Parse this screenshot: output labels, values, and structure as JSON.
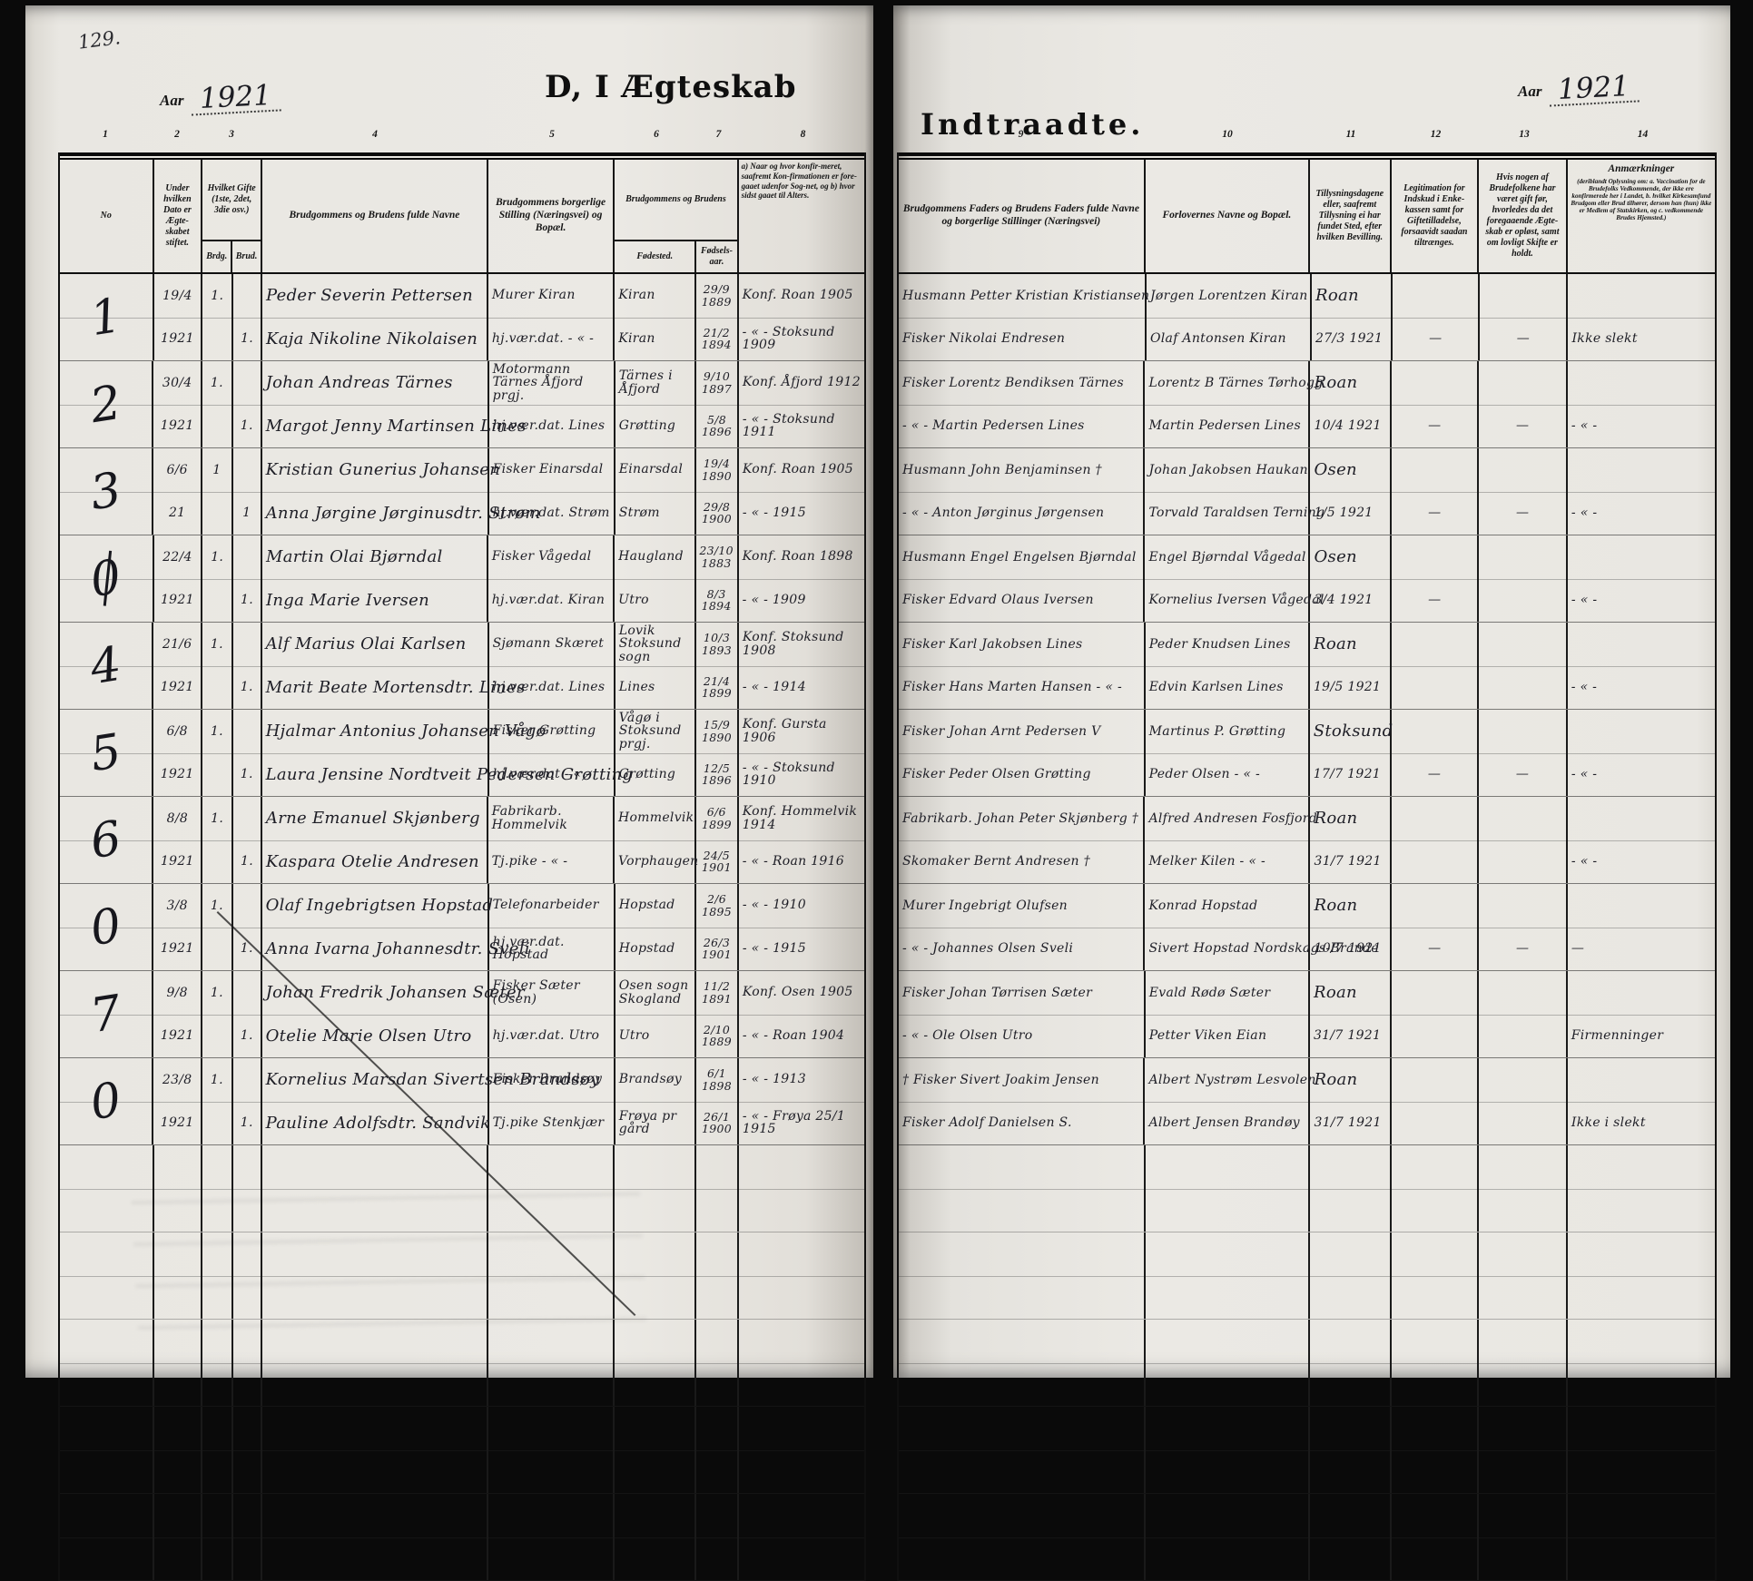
{
  "scan": {
    "page_number": "129."
  },
  "left_page": {
    "year_label": "Aar",
    "year": "1921",
    "title": "D, I Ægteskab",
    "column_numbers": [
      "1",
      "2",
      "3",
      "4",
      "5",
      "6",
      "7",
      "8"
    ],
    "headers": {
      "no": "No",
      "date": "Under hvilken Dato er Ægte-skabet stiftet.",
      "gifte": "Hvilket Gifte (1ste, 2det, 3die osv.)",
      "gifte_brdg": "Brdg.",
      "gifte_brud": "Brud.",
      "names": "Brudgommens og Brudens fulde Navne",
      "stilling": "Brudgommens borgerlige Stilling (Næringsvei) og Bopæl.",
      "couple": "Brudgommens og Brudens",
      "fodested": "Fødested.",
      "fodselsaar": "Fødsels-aar.",
      "konf": "a) Naar og hvor konfir-meret, saafremt Kon-firmationen er fore-gaaet udenfor Sog-net, og b) hvor sidst gaaet til Alters."
    }
  },
  "right_page": {
    "title": "Indtraadte.",
    "year_label": "Aar",
    "year": "1921",
    "column_numbers": [
      "9",
      "10",
      "11",
      "12",
      "13",
      "14"
    ],
    "headers": {
      "fathers": "Brudgommens Faders og Brudens Faders fulde Navne og borgerlige Stillinger (Næringsvei)",
      "forlovere": "Forlovernes Navne og Bopæl.",
      "tillysning": "Tillysningsdagene eller, saafremt Tillysning ei har fundet Sted, efter hvilken Bevilling.",
      "legitimation": "Legitimation for Indskud i Enke-kassen samt for Giftetilladelse, forsaavidt saadan tiltrænges.",
      "previous": "Hvis nogen af Brudefolkene har været gift før, hvorledes da det foregaaende Ægte-skab er opløst, samt om lovligt Skifte er holdt.",
      "anm_title": "Anmærkninger",
      "anm_note": "(deriblandt Oplysning om: a. Vaccination for de Brudefolks Vedkommende, der ikke ere konfirmerede her i Landet, b. hvilket Kirkesamfund Brudgom eller Brud tilhører, dersom han (hun) ikke er Medlem af Statskirken, og c. vedkommende Brudes Hjemsted.)"
    }
  },
  "records": [
    {
      "no": "1",
      "no_slashed": false,
      "date_day": "19/4",
      "date_year": "1921",
      "gifte_brdg": "1.",
      "gifte_brud": "1.",
      "groom": {
        "name": "Peder Severin Pettersen",
        "stilling": "Murer Kiran",
        "fodested": "Kiran",
        "born": "29/9",
        "born_year": "1889",
        "konf": "Konf. Roan 1905",
        "father": "Husmann Petter Kristian Kristiansen"
      },
      "bride": {
        "name": "Kaja Nikoline Nikolaisen",
        "stilling": "hj.vær.dat. - « -",
        "fodested": "Kiran",
        "born": "21/2",
        "born_year": "1894",
        "konf": "- « - Stoksund 1909",
        "father": "Fisker Nikolai Endresen"
      },
      "forlover1": "Jørgen Lorentzen Kiran",
      "forlover2": "Olaf Antonsen Kiran",
      "tillysning_place": "Roan",
      "tillysning_date": "27/3 1921",
      "legitimation": "—",
      "previous": "—",
      "anm": "Ikke slekt"
    },
    {
      "no": "2",
      "no_slashed": false,
      "date_day": "30/4",
      "date_year": "1921",
      "gifte_brdg": "1.",
      "gifte_brud": "1.",
      "groom": {
        "name": "Johan Andreas Tärnes",
        "stilling": "Motormann Tärnes Åfjord prgj.",
        "fodested": "Tärnes i Åfjord",
        "born": "9/10",
        "born_year": "1897",
        "konf": "Konf. Åfjord 1912",
        "father": "Fisker Lorentz Bendiksen Tärnes"
      },
      "bride": {
        "name": "Margot Jenny Martinsen Lines",
        "stilling": "hj.vær.dat. Lines",
        "fodested": "Grøtting",
        "born": "5/8",
        "born_year": "1896",
        "konf": "- « - Stoksund 1911",
        "father": "- « - Martin Pedersen Lines"
      },
      "forlover1": "Lorentz B Tärnes Tørhogg",
      "forlover2": "Martin Pedersen Lines",
      "tillysning_place": "Roan",
      "tillysning_date": "10/4 1921",
      "legitimation": "—",
      "previous": "—",
      "anm": "- « -"
    },
    {
      "no": "3",
      "no_slashed": false,
      "date_day": "6/6",
      "date_year": "21",
      "gifte_brdg": "1",
      "gifte_brud": "1",
      "groom": {
        "name": "Kristian Gunerius Johansen",
        "stilling": "Fisker Einarsdal",
        "fodested": "Einarsdal",
        "born": "19/4",
        "born_year": "1890",
        "konf": "Konf. Roan 1905",
        "father": "Husmann John Benjaminsen †"
      },
      "bride": {
        "name": "Anna Jørgine Jørginusdtr. Strøm",
        "stilling": "hj.vær.dat. Strøm",
        "fodested": "Strøm",
        "born": "29/8",
        "born_year": "1900",
        "konf": "- « - 1915",
        "father": "- « - Anton Jørginus Jørgensen"
      },
      "forlover1": "Johan Jakobsen Haukan",
      "forlover2": "Torvald Taraldsen Terning",
      "tillysning_place": "Osen",
      "tillysning_date": "1/5 1921",
      "legitimation": "—",
      "previous": "—",
      "anm": "- « -"
    },
    {
      "no": "0",
      "no_slashed": true,
      "date_day": "22/4",
      "date_year": "1921",
      "gifte_brdg": "1.",
      "gifte_brud": "1.",
      "groom": {
        "name": "Martin Olai Bjørndal",
        "stilling": "Fisker Vågedal",
        "fodested": "Haugland",
        "born": "23/10",
        "born_year": "1883",
        "konf": "Konf. Roan 1898",
        "father": "Husmann Engel Engelsen Bjørndal"
      },
      "bride": {
        "name": "Inga Marie Iversen",
        "stilling": "hj.vær.dat. Kiran",
        "fodested": "Utro",
        "born": "8/3",
        "born_year": "1894",
        "konf": "- « - 1909",
        "father": "Fisker Edvard Olaus Iversen"
      },
      "forlover1": "Engel Bjørndal Vågedal",
      "forlover2": "Kornelius Iversen Vågedal",
      "tillysning_place": "Osen",
      "tillysning_date": "3/4 1921",
      "legitimation": "—",
      "previous": "",
      "anm": "- « -"
    },
    {
      "no": "4",
      "no_slashed": false,
      "date_day": "21/6",
      "date_year": "1921",
      "gifte_brdg": "1.",
      "gifte_brud": "1.",
      "groom": {
        "name": "Alf Marius Olai Karlsen",
        "stilling": "Sjømann Skæret",
        "fodested": "Lovik Stoksund sogn",
        "born": "10/3",
        "born_year": "1893",
        "konf": "Konf. Stoksund 1908",
        "father": "Fisker Karl Jakobsen Lines"
      },
      "bride": {
        "name": "Marit Beate Mortensdtr. Lines",
        "stilling": "hj.vær.dat. Lines",
        "fodested": "Lines",
        "born": "21/4",
        "born_year": "1899",
        "konf": "- « - 1914",
        "father": "Fisker Hans Marten Hansen - « -"
      },
      "forlover1": "Peder Knudsen Lines",
      "forlover2": "Edvin Karlsen Lines",
      "tillysning_place": "Roan",
      "tillysning_date": "19/5 1921",
      "legitimation": "",
      "previous": "",
      "anm": "- « -"
    },
    {
      "no": "5",
      "no_slashed": false,
      "date_day": "6/8",
      "date_year": "1921",
      "gifte_brdg": "1.",
      "gifte_brud": "1.",
      "groom": {
        "name": "Hjalmar Antonius Johansen Vågø",
        "stilling": "Fisker Grøtting",
        "fodested": "Vågø i Stoksund prgj.",
        "born": "15/9",
        "born_year": "1890",
        "konf": "Konf. Gursta 1906",
        "father": "Fisker Johan Arnt Pedersen V"
      },
      "bride": {
        "name": "Laura Jensine Nordtveit Pedersen Grøtting",
        "stilling": "hj.vær.dat - « -",
        "fodested": "Grøtting",
        "born": "12/5",
        "born_year": "1896",
        "konf": "- « - Stoksund 1910",
        "father": "Fisker Peder Olsen Grøtting"
      },
      "forlover1": "Martinus P. Grøtting",
      "forlover2": "Peder Olsen - « -",
      "tillysning_place": "Stoksund",
      "tillysning_date": "17/7 1921",
      "legitimation": "—",
      "previous": "—",
      "anm": "- « -"
    },
    {
      "no": "6",
      "no_slashed": false,
      "date_day": "8/8",
      "date_year": "1921",
      "gifte_brdg": "1.",
      "gifte_brud": "1.",
      "groom": {
        "name": "Arne Emanuel Skjønberg",
        "stilling": "Fabrikarb. Hommelvik",
        "fodested": "Hommelvik",
        "born": "6/6",
        "born_year": "1899",
        "konf": "Konf. Hommelvik 1914",
        "father": "Fabrikarb. Johan Peter Skjønberg †"
      },
      "bride": {
        "name": "Kaspara Otelie Andresen",
        "stilling": "Tj.pike - « -",
        "fodested": "Vorphaugen",
        "born": "24/5",
        "born_year": "1901",
        "konf": "- « - Roan 1916",
        "father": "Skomaker Bernt Andresen †"
      },
      "forlover1": "Alfred Andresen Fosfjord",
      "forlover2": "Melker Kilen - « -",
      "tillysning_place": "Roan",
      "tillysning_date": "31/7 1921",
      "legitimation": "",
      "previous": "",
      "anm": "- « -"
    },
    {
      "no": "0",
      "no_slashed": false,
      "date_day": "3/8",
      "date_year": "1921",
      "gifte_brdg": "1.",
      "gifte_brud": "1.",
      "groom": {
        "name": "Olaf Ingebrigtsen Hopstad",
        "stilling": "Telefonarbeider",
        "fodested": "Hopstad",
        "born": "2/6",
        "born_year": "1895",
        "konf": "- « - 1910",
        "father": "Murer Ingebrigt Olufsen"
      },
      "bride": {
        "name": "Anna Ivarna Johannesdtr. Sveli",
        "stilling": "hj.vær.dat. Hopstad",
        "fodested": "Hopstad",
        "born": "26/3",
        "born_year": "1901",
        "konf": "- « - 1915",
        "father": "- « - Johannes Olsen Sveli"
      },
      "forlover1": "Konrad Hopstad",
      "forlover2": "Sivert Hopstad Nordskags-Brande",
      "tillysning_place": "Roan",
      "tillysning_date": "10/7 1921",
      "legitimation": "—",
      "previous": "—",
      "anm": "—"
    },
    {
      "no": "7",
      "no_slashed": false,
      "date_day": "9/8",
      "date_year": "1921",
      "gifte_brdg": "1.",
      "gifte_brud": "1.",
      "groom": {
        "name": "Johan Fredrik Johansen Sæter",
        "stilling": "Fisker Sæter (Osen)",
        "fodested": "Osen sogn Skogland",
        "born": "11/2",
        "born_year": "1891",
        "konf": "Konf. Osen 1905",
        "father": "Fisker Johan Tørrisen Sæter"
      },
      "bride": {
        "name": "Otelie Marie Olsen Utro",
        "stilling": "hj.vær.dat. Utro",
        "fodested": "Utro",
        "born": "2/10",
        "born_year": "1889",
        "konf": "- « - Roan 1904",
        "father": "- « - Ole Olsen Utro"
      },
      "forlover1": "Evald Rødø Sæter",
      "forlover2": "Petter Viken Eian",
      "tillysning_place": "Roan",
      "tillysning_date": "31/7 1921",
      "legitimation": "",
      "previous": "",
      "anm": "Firmenninger"
    },
    {
      "no": "0",
      "no_slashed": false,
      "date_day": "23/8",
      "date_year": "1921",
      "gifte_brdg": "1.",
      "gifte_brud": "1.",
      "groom": {
        "name": "Kornelius Marsdan Sivertsen Brandsøy",
        "stilling": "Fisker Brandsøy",
        "fodested": "Brandsøy",
        "born": "6/1",
        "born_year": "1898",
        "konf": "- « - 1913",
        "father": "† Fisker Sivert Joakim Jensen"
      },
      "bride": {
        "name": "Pauline Adolfsdtr. Sandvik",
        "stilling": "Tj.pike Stenkjær",
        "fodested": "Frøya pr gård",
        "born": "26/1",
        "born_year": "1900",
        "konf": "- « - Frøya 25/1 1915",
        "father": "Fisker Adolf Danielsen S."
      },
      "forlover1": "Albert Nystrøm Lesvolen",
      "forlover2": "Albert Jensen Brandøy",
      "tillysning_place": "Roan",
      "tillysning_date": "31/7 1921",
      "legitimation": "",
      "previous": "",
      "anm": "Ikke i slekt"
    }
  ]
}
